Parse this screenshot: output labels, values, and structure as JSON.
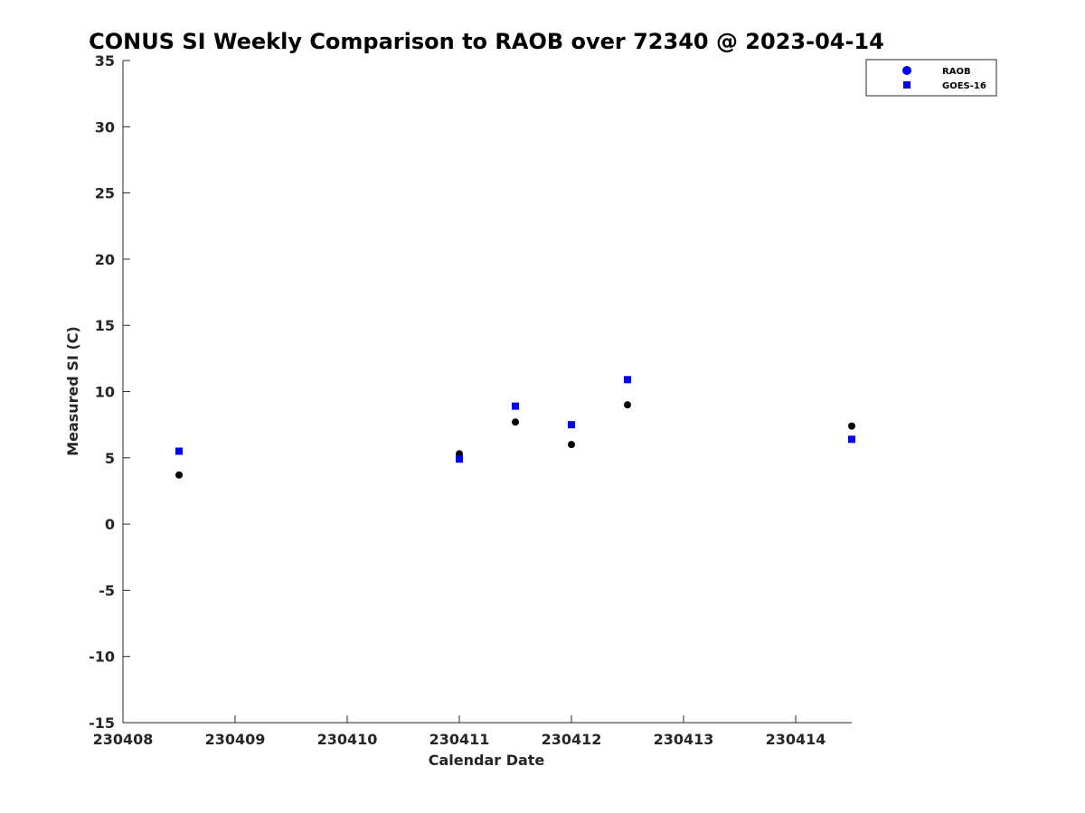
{
  "chart_data": {
    "type": "scatter",
    "title": "CONUS SI Weekly Comparison to RAOB over 72340 @ 2023-04-14",
    "xlabel": "Calendar Date",
    "ylabel": "Measured SI (C)",
    "xlim": [
      230408,
      230414.5
    ],
    "ylim": [
      -15,
      35
    ],
    "xticks": [
      230408,
      230409,
      230410,
      230411,
      230412,
      230413,
      230414
    ],
    "xtick_labels": [
      "230408",
      "230409",
      "230410",
      "230411",
      "230412",
      "230413",
      "230414"
    ],
    "yticks": [
      35,
      30,
      25,
      20,
      15,
      10,
      5,
      0,
      -5,
      -10,
      -15
    ],
    "ytick_labels": [
      "35",
      "30",
      "25",
      "20",
      "15",
      "10",
      "5",
      "0",
      "-5",
      "-10",
      "-15"
    ],
    "grid": false,
    "legend_position": "top-right",
    "series": [
      {
        "name": "RAOB",
        "marker": "circle",
        "legend_color": "#0000ff",
        "color": "#000000",
        "x": [
          230408.5,
          230411.0,
          230411.5,
          230412.0,
          230412.5,
          230414.5
        ],
        "y": [
          3.7,
          5.3,
          7.7,
          6.0,
          9.0,
          7.4
        ]
      },
      {
        "name": "GOES-16",
        "marker": "square",
        "legend_color": "#0000ff",
        "color": "#0000ff",
        "x": [
          230408.5,
          230411.0,
          230411.5,
          230412.0,
          230412.5,
          230414.5
        ],
        "y": [
          5.5,
          4.9,
          8.9,
          7.5,
          10.9,
          6.4
        ]
      }
    ]
  }
}
